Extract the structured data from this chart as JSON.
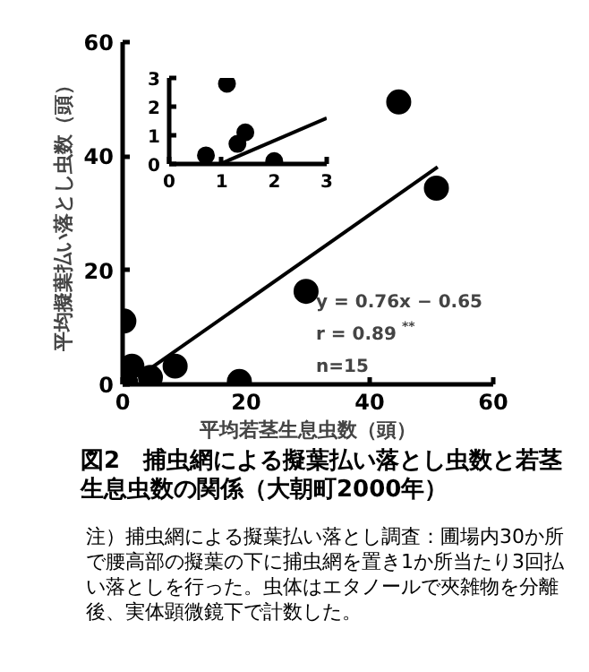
{
  "chart_data": [
    {
      "type": "scatter",
      "title": "図2　捕虫網による擬葉払い落とし虫数と若茎生息虫数の関係（大朝町2000年）",
      "xlabel": "平均若茎生息虫数（頭）",
      "ylabel": "平均擬葉払い落とし虫数（頭）",
      "xlim": [
        0,
        60
      ],
      "ylim": [
        0,
        60
      ],
      "xticks": [
        0,
        20,
        40,
        60
      ],
      "yticks": [
        0,
        20,
        40,
        60
      ],
      "grid": false,
      "series": [
        {
          "marker": "circle",
          "color": "#000000",
          "x": [
            0.2,
            0.5,
            1.5,
            4.5,
            8.5,
            18.9,
            29.7,
            44.7,
            50.8
          ],
          "values": [
            11.1,
            0.3,
            3.2,
            1.2,
            3.2,
            0.5,
            16.3,
            49.5,
            34.4
          ]
        },
        {
          "type": "line",
          "color": "#000000",
          "x": [
            4,
            51
          ],
          "values": [
            2.4,
            38.1
          ]
        }
      ],
      "annotations": [
        "y = 0.76x − 0.65",
        "r = 0.89$^{**}$",
        "n=15",
        "注）捕虫網による擬葉払い落とし調査：圃場内30か所で腰高部の擬葉の下に捕虫網を置き1か所当たり3回払い落としを行った。虫体はエタノールで夾雑物を分離後、実体顕微鏡下で計数した。"
      ]
    },
    {
      "type": "scatter",
      "xlim": [
        0,
        3
      ],
      "ylim": [
        0,
        3
      ],
      "xticks": [
        0,
        1,
        2,
        3
      ],
      "yticks": [
        0,
        1,
        2,
        3
      ],
      "grid": false,
      "series": [
        {
          "marker": "circle",
          "color": "#000000",
          "x": [
            0.7,
            1.1,
            1.3,
            1.45,
            2.0
          ],
          "values": [
            0.3,
            2.8,
            0.7,
            1.1,
            0.1
          ]
        },
        {
          "type": "line",
          "color": "#000000",
          "x": [
            0.97,
            3
          ],
          "values": [
            0,
            1.6
          ]
        }
      ]
    }
  ]
}
